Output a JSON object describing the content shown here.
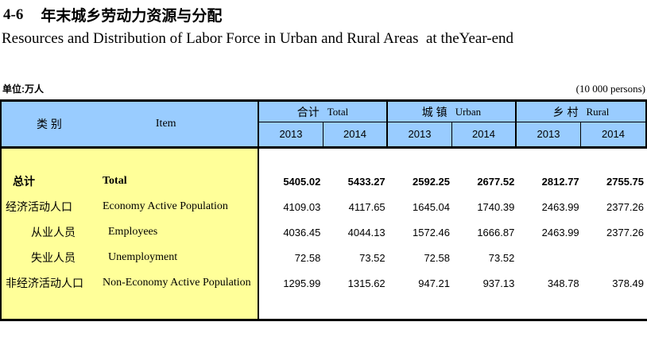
{
  "page": {
    "title_number": "4-6",
    "title_zh": "年末城乡劳动力资源与分配",
    "title_en": "Resources and Distribution of Labor Force in Urban and Rural Areas  at theYear-end",
    "unit_zh": "单位:万人",
    "unit_en": "(10 000 persons)"
  },
  "colors": {
    "header_bg": "#99CCFF",
    "item_column_bg": "#FFFF99",
    "border": "#000000"
  },
  "table": {
    "item_header_zh": "类 别",
    "item_header_en": "Item",
    "groups": [
      {
        "zh": "合计",
        "en": "Total",
        "years": [
          "2013",
          "2014"
        ]
      },
      {
        "zh": "城 镇",
        "en": "Urban",
        "years": [
          "2013",
          "2014"
        ]
      },
      {
        "zh": "乡 村",
        "en": "Rural",
        "years": [
          "2013",
          "2014"
        ]
      }
    ],
    "rows": [
      {
        "zh": "总计",
        "en": "Total",
        "values": [
          "5405.02",
          "5433.27",
          "2592.25",
          "2677.52",
          "2812.77",
          "2755.75"
        ]
      },
      {
        "zh": "经济活动人口",
        "en": "Economy Active Population",
        "values": [
          "4109.03",
          "4117.65",
          "1645.04",
          "1740.39",
          "2463.99",
          "2377.26"
        ]
      },
      {
        "zh": "从业人员",
        "en": "Employees",
        "values": [
          "4036.45",
          "4044.13",
          "1572.46",
          "1666.87",
          "2463.99",
          "2377.26"
        ]
      },
      {
        "zh": "失业人员",
        "en": "Unemployment",
        "values": [
          "72.58",
          "73.52",
          "72.58",
          "73.52",
          "",
          ""
        ]
      },
      {
        "zh": "非经济活动人口",
        "en": "Non-Economy Active Population",
        "values": [
          "1295.99",
          "1315.62",
          "947.21",
          "937.13",
          "348.78",
          "378.49"
        ]
      }
    ]
  }
}
